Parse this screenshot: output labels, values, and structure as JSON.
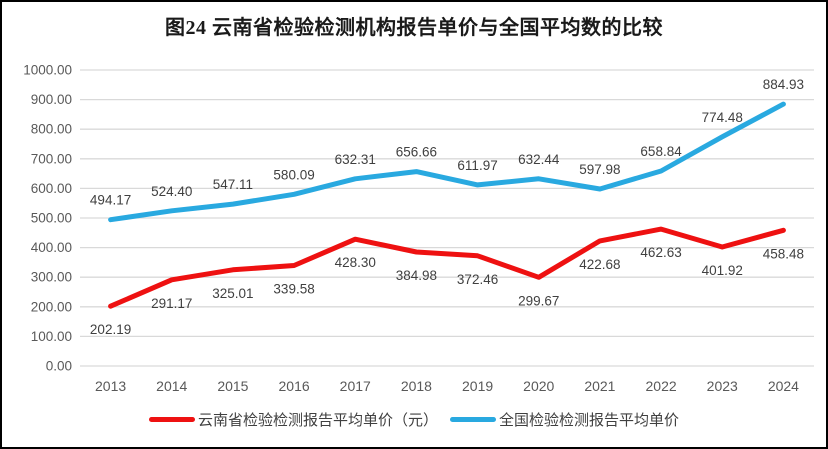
{
  "title": "图24 云南省检验检测机构报告单价与全国平均数的比较",
  "chart_data": {
    "type": "line",
    "title": "图24 云南省检验检测机构报告单价与全国平均数的比较",
    "categories": [
      "2013",
      "2014",
      "2015",
      "2016",
      "2017",
      "2018",
      "2019",
      "2020",
      "2021",
      "2022",
      "2023",
      "2024"
    ],
    "series": [
      {
        "name": "云南省检验检测报告平均单价（元）",
        "color": "#EE1111",
        "values": [
          202.19,
          291.17,
          325.01,
          339.58,
          428.3,
          384.98,
          372.46,
          299.67,
          422.68,
          462.63,
          401.92,
          458.48
        ],
        "label_position": "below"
      },
      {
        "name": "全国检验检测报告平均单价",
        "color": "#29A9E0",
        "values": [
          494.17,
          524.4,
          547.11,
          580.09,
          632.31,
          656.66,
          611.97,
          632.44,
          597.98,
          658.84,
          774.48,
          884.93
        ],
        "label_position": "above"
      }
    ],
    "y_axis": {
      "min": 0,
      "max": 1000,
      "step": 100,
      "tick_labels": [
        "0.00",
        "100.00",
        "200.00",
        "300.00",
        "400.00",
        "500.00",
        "600.00",
        "700.00",
        "800.00",
        "900.00",
        "1000.00"
      ]
    },
    "grid": true,
    "legend_position": "bottom",
    "xlabel": "",
    "ylabel": "",
    "colors": {
      "gridline": "#D9D9D9",
      "axis_label": "#595959",
      "data_label": "#404040",
      "frame_border": "#000000"
    }
  }
}
